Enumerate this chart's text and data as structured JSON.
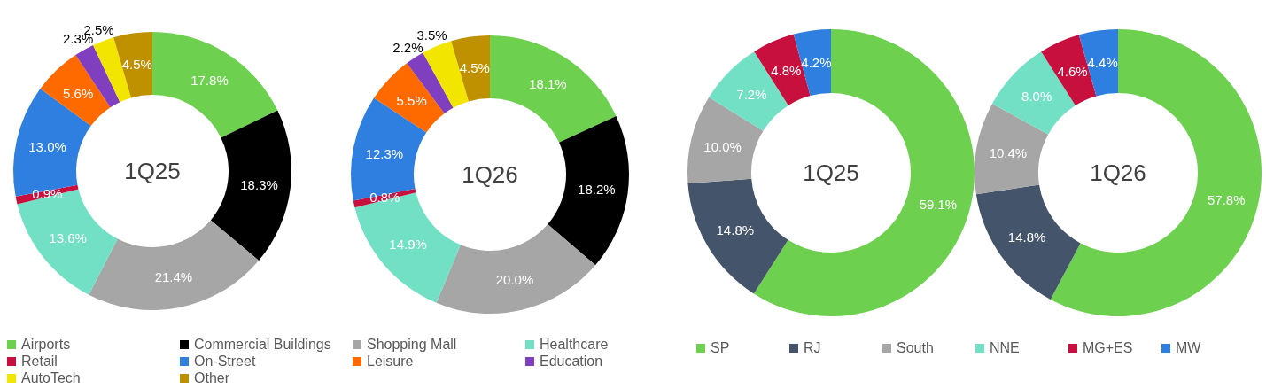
{
  "chart_data": [
    {
      "type": "donut",
      "title": "1Q25",
      "categories": [
        "Airports",
        "Commercial Buildings",
        "Shopping Mall",
        "Healthcare",
        "Retail",
        "On-Street",
        "Leisure",
        "Education",
        "AutoTech",
        "Other"
      ],
      "values": [
        17.8,
        18.3,
        21.4,
        13.6,
        0.9,
        13.0,
        5.6,
        2.3,
        2.5,
        4.5
      ],
      "value_labels": [
        "17.8%",
        "18.3%",
        "21.4%",
        "13.6%",
        "0.9%",
        "13.0%",
        "5.6%",
        "2.3%",
        "2.5%",
        "4.5%"
      ],
      "colors": [
        "#6dd14f",
        "#000000",
        "#a6a6a6",
        "#72e0c4",
        "#c8103e",
        "#2f7fe0",
        "#ff6a00",
        "#7f3fbf",
        "#f2e600",
        "#bf9000"
      ],
      "legend": "bottom"
    },
    {
      "type": "donut",
      "title": "1Q26",
      "categories": [
        null,
        null,
        null,
        null,
        null,
        null,
        null,
        null,
        null,
        null
      ],
      "values": [
        18.1,
        18.2,
        20.0,
        14.9,
        0.8,
        12.3,
        5.5,
        2.2,
        3.5,
        4.5
      ],
      "value_labels": [
        "18.1%",
        "18.2%",
        "20.0%",
        "14.9%",
        "0.8%",
        "12.3%",
        "5.5%",
        "2.2%",
        "3.5%",
        "4.5%"
      ],
      "colors": [
        "#6dd14f",
        "#000000",
        "#a6a6a6",
        "#72e0c4",
        "#c8103e",
        "#2f7fe0",
        "#ff6a00",
        "#7f3fbf",
        "#f2e600",
        "#bf9000"
      ]
    },
    {
      "type": "donut",
      "title": "1Q25",
      "categories": [
        "SP",
        "RJ",
        "South",
        "NNE",
        "MG+ES",
        "MW"
      ],
      "values": [
        59.1,
        14.8,
        10.0,
        7.2,
        4.8,
        4.2
      ],
      "value_labels": [
        "59.1%",
        "14.8%",
        "10.0%",
        "7.2%",
        "4.8%",
        "4.2%"
      ],
      "colors": [
        "#6dd14f",
        "#44546a",
        "#a6a6a6",
        "#72e0c4",
        "#c8103e",
        "#2f7fe0"
      ],
      "legend": "bottom"
    },
    {
      "type": "donut",
      "title": "1Q26",
      "categories": [
        null,
        null,
        null,
        null,
        null,
        null
      ],
      "values": [
        57.8,
        14.8,
        10.4,
        8.0,
        4.6,
        4.4
      ],
      "value_labels": [
        "57.8%",
        "14.8%",
        "10.4%",
        "8.0%",
        "4.6%",
        "4.4%"
      ],
      "colors": [
        "#6dd14f",
        "#44546a",
        "#a6a6a6",
        "#72e0c4",
        "#c8103e",
        "#2f7fe0"
      ]
    }
  ]
}
